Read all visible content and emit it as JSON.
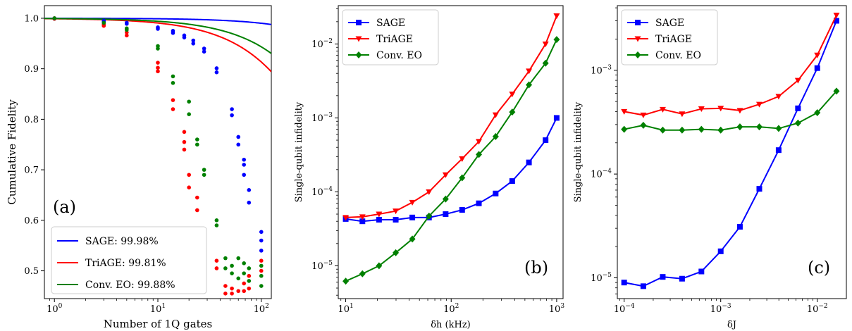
{
  "chart_data": [
    {
      "type": "scatter",
      "panel_label": "(a)",
      "xlabel": "Number of 1Q gates",
      "ylabel": "Cumulative Fidelity",
      "xscale": "log",
      "xlim": [
        0.8,
        125
      ],
      "ylim": [
        0.445,
        1.025
      ],
      "xticks": [
        {
          "v": 1,
          "b": "10",
          "e": "0"
        },
        {
          "v": 10,
          "b": "10",
          "e": "1"
        },
        {
          "v": 100,
          "b": "10",
          "e": "2"
        }
      ],
      "yticks": [
        {
          "v": 0.5,
          "label": "0.5"
        },
        {
          "v": 0.6,
          "label": "0.6"
        },
        {
          "v": 0.7,
          "label": "0.7"
        },
        {
          "v": 0.8,
          "label": "0.8"
        },
        {
          "v": 0.9,
          "label": "0.9"
        },
        {
          "v": 1.0,
          "label": "1.0"
        }
      ],
      "legend_position": "bottom-right",
      "series": [
        {
          "name": "SAGE: 99.98%",
          "color": "#0000ff",
          "fit_fidelity": 0.9998,
          "points": [
            [
              1,
              1.0
            ],
            [
              1,
              0.999
            ],
            [
              3,
              0.995
            ],
            [
              3,
              0.993
            ],
            [
              5,
              0.991
            ],
            [
              5,
              0.989
            ],
            [
              10,
              0.982
            ],
            [
              10,
              0.979
            ],
            [
              14,
              0.975
            ],
            [
              14,
              0.971
            ],
            [
              18,
              0.966
            ],
            [
              18,
              0.962
            ],
            [
              22,
              0.956
            ],
            [
              22,
              0.95
            ],
            [
              28,
              0.94
            ],
            [
              28,
              0.934
            ],
            [
              37,
              0.901
            ],
            [
              37,
              0.893
            ],
            [
              52,
              0.82
            ],
            [
              52,
              0.808
            ],
            [
              60,
              0.765
            ],
            [
              60,
              0.75
            ],
            [
              68,
              0.72
            ],
            [
              68,
              0.71
            ],
            [
              68,
              0.69
            ],
            [
              76,
              0.66
            ],
            [
              76,
              0.635
            ],
            [
              100,
              0.577
            ],
            [
              100,
              0.56
            ],
            [
              100,
              0.54
            ]
          ]
        },
        {
          "name": "TriAGE: 99.81%",
          "color": "#ff0000",
          "fit_fidelity": 0.9981,
          "points": [
            [
              1,
              1.0
            ],
            [
              1,
              0.999
            ],
            [
              3,
              0.988
            ],
            [
              3,
              0.985
            ],
            [
              5,
              0.972
            ],
            [
              5,
              0.966
            ],
            [
              10,
              0.912
            ],
            [
              10,
              0.902
            ],
            [
              10,
              0.895
            ],
            [
              14,
              0.838
            ],
            [
              14,
              0.82
            ],
            [
              18,
              0.775
            ],
            [
              18,
              0.755
            ],
            [
              18,
              0.74
            ],
            [
              20,
              0.69
            ],
            [
              20,
              0.665
            ],
            [
              24,
              0.645
            ],
            [
              24,
              0.62
            ],
            [
              28,
              0.58
            ],
            [
              28,
              0.56
            ],
            [
              37,
              0.52
            ],
            [
              37,
              0.505
            ],
            [
              45,
              0.47
            ],
            [
              45,
              0.455
            ],
            [
              52,
              0.465
            ],
            [
              52,
              0.455
            ],
            [
              60,
              0.46
            ],
            [
              68,
              0.475
            ],
            [
              68,
              0.46
            ],
            [
              76,
              0.49
            ],
            [
              76,
              0.465
            ],
            [
              100,
              0.52
            ],
            [
              100,
              0.5
            ]
          ]
        },
        {
          "name": "Conv. EO: 99.88%",
          "color": "#008000",
          "fit_fidelity": 0.9988,
          "points": [
            [
              1,
              1.0
            ],
            [
              3,
              0.991
            ],
            [
              5,
              0.98
            ],
            [
              5,
              0.977
            ],
            [
              10,
              0.945
            ],
            [
              10,
              0.94
            ],
            [
              14,
              0.885
            ],
            [
              14,
              0.872
            ],
            [
              20,
              0.835
            ],
            [
              20,
              0.81
            ],
            [
              24,
              0.76
            ],
            [
              24,
              0.75
            ],
            [
              28,
              0.7
            ],
            [
              28,
              0.69
            ],
            [
              37,
              0.6
            ],
            [
              37,
              0.59
            ],
            [
              45,
              0.525
            ],
            [
              45,
              0.505
            ],
            [
              52,
              0.51
            ],
            [
              52,
              0.495
            ],
            [
              60,
              0.525
            ],
            [
              60,
              0.485
            ],
            [
              68,
              0.515
            ],
            [
              68,
              0.495
            ],
            [
              76,
              0.505
            ],
            [
              76,
              0.48
            ],
            [
              100,
              0.51
            ],
            [
              100,
              0.49
            ],
            [
              100,
              0.47
            ]
          ]
        }
      ]
    },
    {
      "type": "line",
      "panel_label": "(b)",
      "xlabel": "δh (kHz)",
      "ylabel": "Single-qubit infidelity",
      "xscale": "log",
      "yscale": "log",
      "xlim": [
        8.5,
        1150
      ],
      "ylim": [
        3.6e-06,
        0.033
      ],
      "xticks": [
        {
          "v": 10,
          "b": "10",
          "e": "1"
        },
        {
          "v": 100,
          "b": "10",
          "e": "2"
        },
        {
          "v": 1000,
          "b": "10",
          "e": "3"
        }
      ],
      "yticks": [
        {
          "v": 1e-05,
          "b": "10",
          "e": "−5"
        },
        {
          "v": 0.0001,
          "b": "10",
          "e": "−4"
        },
        {
          "v": 0.001,
          "b": "10",
          "e": "−3"
        },
        {
          "v": 0.01,
          "b": "10",
          "e": "−2"
        }
      ],
      "legend_position": "top-left",
      "x": [
        10,
        14.4,
        20.7,
        29.8,
        42.8,
        61.6,
        88.6,
        127,
        183,
        264,
        379,
        546,
        785,
        1000
      ],
      "series": [
        {
          "name": "SAGE",
          "color": "#0000ff",
          "marker": "square",
          "values": [
            4.3e-05,
            4e-05,
            4.2e-05,
            4.2e-05,
            4.5e-05,
            4.5e-05,
            5e-05,
            5.7e-05,
            7e-05,
            9.5e-05,
            0.00014,
            0.00025,
            0.0005,
            0.001
          ]
        },
        {
          "name": "TriAGE",
          "color": "#ff0000",
          "marker": "triangle-down",
          "values": [
            4.5e-05,
            4.6e-05,
            5e-05,
            5.5e-05,
            7.2e-05,
            0.0001,
            0.00017,
            0.00028,
            0.00048,
            0.0011,
            0.0021,
            0.0043,
            0.01,
            0.024
          ]
        },
        {
          "name": "Conv. EO",
          "color": "#008000",
          "marker": "diamond",
          "values": [
            6.2e-06,
            7.8e-06,
            1e-05,
            1.5e-05,
            2.3e-05,
            4.7e-05,
            8e-05,
            0.000155,
            0.00032,
            0.00056,
            0.0012,
            0.0028,
            0.0055,
            0.0115
          ]
        }
      ]
    },
    {
      "type": "line",
      "panel_label": "(c)",
      "xlabel": "δJ",
      "ylabel": "Single-qubit infidelity",
      "xscale": "log",
      "yscale": "log",
      "xlim": [
        8.5e-05,
        0.02
      ],
      "ylim": [
        6.3e-06,
        0.0042
      ],
      "xticks": [
        {
          "v": 0.0001,
          "b": "10",
          "e": "−4"
        },
        {
          "v": 0.001,
          "b": "10",
          "e": "−3"
        },
        {
          "v": 0.01,
          "b": "10",
          "e": "−2"
        }
      ],
      "yticks": [
        {
          "v": 1e-05,
          "b": "10",
          "e": "−5"
        },
        {
          "v": 0.0001,
          "b": "10",
          "e": "−4"
        },
        {
          "v": 0.001,
          "b": "10",
          "e": "−3"
        }
      ],
      "legend_position": "top-left",
      "x": [
        0.0001,
        0.000158,
        0.000251,
        0.000398,
        0.000631,
        0.001,
        0.00158,
        0.00251,
        0.00398,
        0.00631,
        0.01,
        0.0158
      ],
      "series": [
        {
          "name": "SAGE",
          "color": "#0000ff",
          "marker": "square",
          "values": [
            9e-06,
            8.3e-06,
            1.02e-05,
            9.8e-06,
            1.15e-05,
            1.8e-05,
            3.1e-05,
            7.2e-05,
            0.00017,
            0.00043,
            0.00105,
            0.003
          ]
        },
        {
          "name": "TriAGE",
          "color": "#ff0000",
          "marker": "triangle-down",
          "values": [
            0.0004,
            0.00037,
            0.00042,
            0.00038,
            0.000425,
            0.00043,
            0.00041,
            0.00047,
            0.00056,
            0.0008,
            0.0014,
            0.0034
          ]
        },
        {
          "name": "Conv. EO",
          "color": "#008000",
          "marker": "diamond",
          "values": [
            0.00027,
            0.000295,
            0.000265,
            0.000265,
            0.00027,
            0.000265,
            0.000285,
            0.000285,
            0.000275,
            0.00031,
            0.00039,
            0.00063
          ]
        }
      ]
    }
  ]
}
